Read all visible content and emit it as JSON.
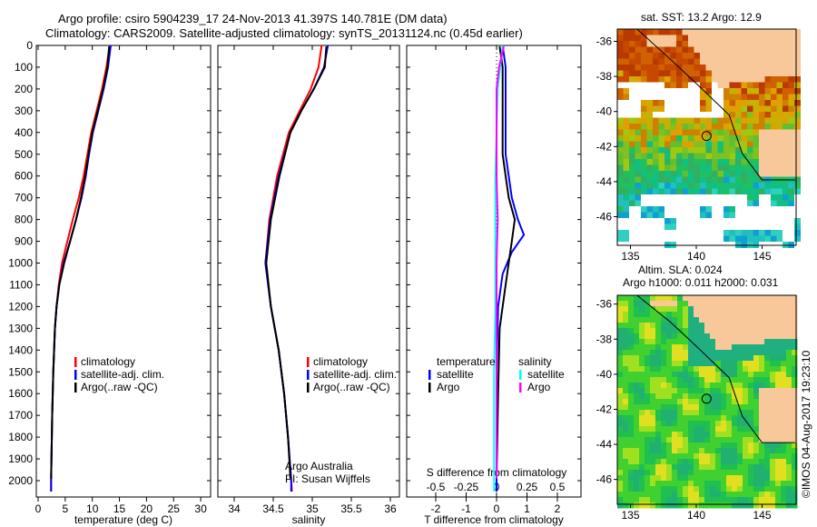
{
  "title": {
    "line1": "Argo profile: csiro 5904239_17 24-Nov-2013 41.397S 140.781E (DM data)",
    "line2": "Climatology: CARS2009. Satellite-adjusted climatology: synTS_20131124.nc (0.45d earlier)"
  },
  "colors": {
    "climatology": "#ff0000",
    "satellite": "#0000ff",
    "argo": "#000000",
    "sal_sat": "#00ffff",
    "sal_argo": "#ff00ff",
    "land": "#f9c89a"
  },
  "chart_data": [
    {
      "type": "line",
      "name": "temperature",
      "xlabel": "temperature (deg C)",
      "ylabel": "depth",
      "xlim": [
        -1,
        31
      ],
      "ylim": [
        2070,
        0
      ],
      "xticks": [
        "0",
        "5",
        "10",
        "15",
        "20",
        "25",
        "30"
      ],
      "yticks": [
        "0",
        "100",
        "200",
        "300",
        "400",
        "500",
        "600",
        "700",
        "800",
        "900",
        "1000",
        "1100",
        "1200",
        "1300",
        "1400",
        "1500",
        "1600",
        "1700",
        "1800",
        "1900",
        "2000"
      ],
      "legend": [
        "climatology",
        "satellite-adj. clim.",
        "Argo(..raw -QC)"
      ],
      "series": [
        {
          "name": "climatology",
          "depth": [
            0,
            100,
            200,
            300,
            400,
            500,
            600,
            700,
            800,
            900,
            1000,
            1100,
            1200,
            1300,
            1500,
            1700,
            2000,
            2050
          ],
          "values": [
            13.2,
            12.6,
            11.8,
            10.8,
            9.8,
            9.1,
            8.4,
            7.5,
            6.4,
            5.4,
            4.4,
            3.8,
            3.4,
            3.1,
            2.8,
            2.6,
            2.4,
            2.4
          ]
        },
        {
          "name": "satellite-adj. clim.",
          "depth": [
            0,
            100,
            200,
            300,
            400,
            500,
            600,
            700,
            800,
            900,
            1000,
            1100,
            1200,
            1300,
            1500,
            1700,
            2000,
            2050
          ],
          "values": [
            13.4,
            12.9,
            12.1,
            11.1,
            10.1,
            9.4,
            8.8,
            8.0,
            7.0,
            5.9,
            4.7,
            3.9,
            3.4,
            3.1,
            2.8,
            2.6,
            2.4,
            2.4
          ]
        },
        {
          "name": "Argo(..raw -QC)",
          "depth": [
            5,
            100,
            200,
            300,
            400,
            500,
            600,
            700,
            800,
            900,
            1000,
            1100,
            1200,
            1300,
            1500,
            1700,
            1990
          ],
          "values": [
            13.1,
            12.8,
            12.0,
            11.0,
            10.0,
            9.3,
            8.7,
            7.9,
            7.0,
            5.9,
            4.8,
            3.9,
            3.4,
            3.1,
            2.8,
            2.6,
            2.4
          ]
        }
      ]
    },
    {
      "type": "line",
      "name": "salinity",
      "xlabel": "salinity",
      "xlim": [
        33.8,
        36.1
      ],
      "ylim": [
        2070,
        0
      ],
      "xticks": [
        "34",
        "34.5",
        "35",
        "35.5",
        "36"
      ],
      "legend": [
        "climatology",
        "satellite-adj. clim.",
        "Argo(..raw -QC)"
      ],
      "annotation": [
        "Argo Australia",
        "PI: Susan Wijffels"
      ],
      "series": [
        {
          "name": "climatology",
          "depth": [
            0,
            100,
            200,
            300,
            400,
            600,
            800,
            1000,
            1200,
            1400,
            1600,
            1800,
            2000,
            2050
          ],
          "values": [
            35.12,
            35.08,
            34.98,
            34.84,
            34.7,
            34.55,
            34.45,
            34.4,
            34.47,
            34.57,
            34.64,
            34.69,
            34.73,
            34.74
          ]
        },
        {
          "name": "satellite-adj. clim.",
          "depth": [
            0,
            100,
            200,
            300,
            400,
            600,
            800,
            1000,
            1200,
            1400,
            1600,
            1800,
            2000,
            2050
          ],
          "values": [
            35.2,
            35.15,
            35.02,
            34.86,
            34.72,
            34.57,
            34.46,
            34.4,
            34.47,
            34.57,
            34.64,
            34.69,
            34.73,
            34.73
          ]
        },
        {
          "name": "Argo(..raw -QC)",
          "depth": [
            5,
            100,
            200,
            300,
            400,
            600,
            800,
            1000,
            1200,
            1400,
            1600,
            1800,
            1990
          ],
          "values": [
            35.18,
            35.16,
            35.02,
            34.86,
            34.72,
            34.58,
            34.47,
            34.41,
            34.47,
            34.57,
            34.64,
            34.69,
            34.72
          ]
        }
      ]
    },
    {
      "type": "line",
      "name": "differences",
      "xlabel": "T difference from climatology",
      "x2label": "S difference from climatology",
      "xlim": [
        -2.9,
        2.9
      ],
      "ylim": [
        2070,
        0
      ],
      "xticks": [
        "-2",
        "-1",
        "0",
        "1",
        "2"
      ],
      "x2ticks": [
        "-0.5",
        "-0.25",
        "0",
        "0.25",
        "0.5"
      ],
      "legend": {
        "temperature_title": "temperature",
        "salinity_title": "salinity",
        "items": [
          "satellite",
          "Argo",
          "satellite",
          "Argo"
        ]
      },
      "series": [
        {
          "name": "T satellite",
          "depth": [
            0,
            100,
            200,
            300,
            400,
            500,
            600,
            700,
            800,
            870,
            950,
            1050,
            1200,
            1500,
            2050
          ],
          "values": [
            0.2,
            0.3,
            0.3,
            0.3,
            0.3,
            0.3,
            0.4,
            0.5,
            0.7,
            0.9,
            0.5,
            0.2,
            0.05,
            0.0,
            0.0
          ]
        },
        {
          "name": "T Argo",
          "depth": [
            5,
            100,
            200,
            300,
            400,
            500,
            600,
            700,
            800,
            900,
            1000,
            1100,
            1300,
            1600,
            1990
          ],
          "values": [
            0.1,
            0.2,
            0.2,
            0.2,
            0.2,
            0.2,
            0.3,
            0.4,
            0.6,
            0.5,
            0.4,
            0.3,
            0.1,
            0.05,
            0.0
          ]
        },
        {
          "name": "S satellite",
          "depth": [
            0,
            100,
            200,
            400,
            600,
            800,
            1000,
            1200,
            1500,
            2050
          ],
          "values": [
            0.05,
            0.03,
            0.01,
            0.0,
            -0.01,
            -0.01,
            -0.01,
            -0.01,
            -0.02,
            -0.02
          ]
        },
        {
          "name": "S Argo",
          "depth": [
            5,
            100,
            200,
            400,
            600,
            800,
            1000,
            1200,
            1500,
            1990
          ],
          "values": [
            0.06,
            0.02,
            0.0,
            0.0,
            0.0,
            0.01,
            0.0,
            0.0,
            0.0,
            0.0
          ]
        }
      ]
    }
  ],
  "maps": {
    "sst": {
      "title": "sat. SST: 13.2 Argo: 12.9"
    },
    "sla": {
      "title1": "Altim. SLA: 0.024",
      "title2": "Argo h1000: 0.011 h2000: 0.031"
    },
    "lon_ticks": [
      "135",
      "140",
      "145"
    ],
    "lat_ticks": [
      "-36",
      "-38",
      "-40",
      "-42",
      "-44",
      "-46"
    ],
    "float_position": {
      "lon": 140.781,
      "lat": -41.397
    }
  },
  "credit": "©IMOS 04-Aug-2017 19:23:10"
}
